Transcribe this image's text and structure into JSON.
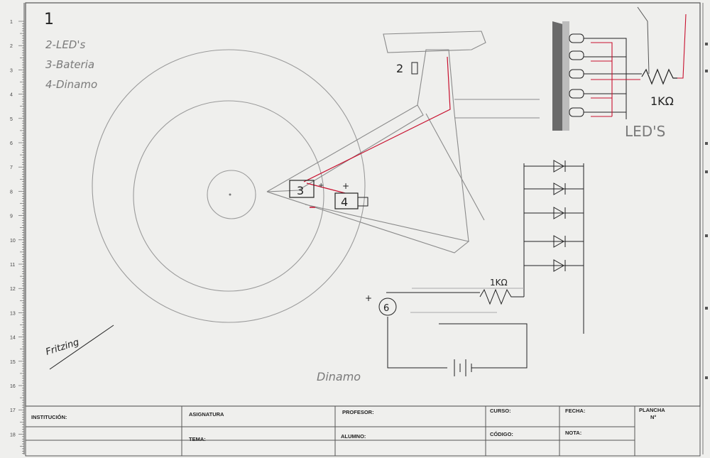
{
  "legend": {
    "number": "1",
    "items": [
      "2-LED's",
      "3-Bateria",
      "4-Dinamo"
    ]
  },
  "signature": "Fritzing",
  "labels": {
    "leds": "LED'S",
    "resistor_top": "1KΩ",
    "resistor_mid": "1KΩ",
    "dinamo": "Dinamo",
    "item_2": "2",
    "item_3": "3",
    "item_4": "4",
    "item_6": "6"
  },
  "ruler_numbers": [
    "1",
    "2",
    "3",
    "4",
    "5",
    "6",
    "7",
    "8",
    "9",
    "10",
    "11",
    "12",
    "13",
    "14",
    "15",
    "16",
    "17",
    "18"
  ],
  "title_block": {
    "institucion": "INSTITUCIÓN:",
    "asignatura": "ASIGNATURA",
    "profesor": "PROFESOR:",
    "curso": "CURSO:",
    "fecha": "FECHA:",
    "plancha": "PLANCHA",
    "plancha_no": "N°",
    "tema": "TEMA:",
    "alumno": "ALUMNO:",
    "codigo": "CÓDIGO:",
    "nota": "NOTA:"
  },
  "colors": {
    "paper": "#f1f1ef",
    "pencil": "#8a8a8a",
    "ink": "#222222",
    "red": "#c8102e"
  }
}
